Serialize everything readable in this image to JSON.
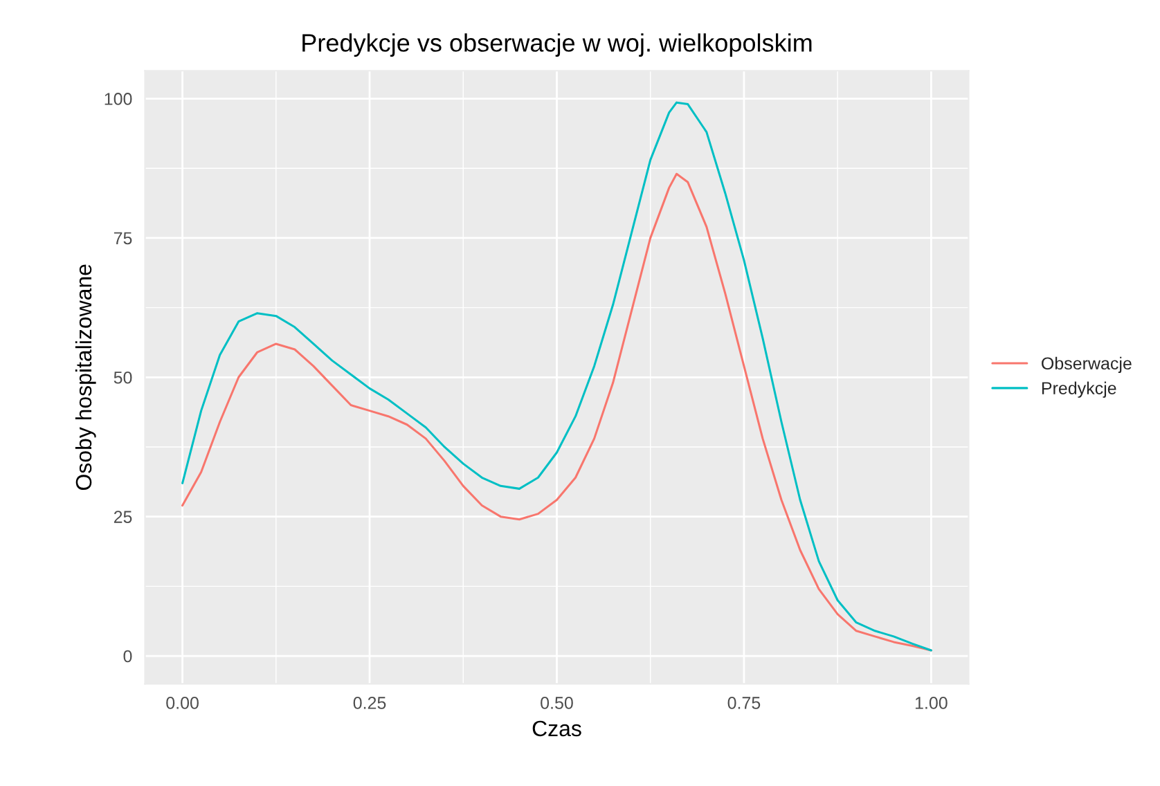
{
  "chart_data": {
    "type": "line",
    "title": "Predykcje vs obserwacje w woj. wielkopolskim",
    "xlabel": "Czas",
    "ylabel": "Osoby hospitalizowane",
    "x": [
      0,
      0.025,
      0.05,
      0.075,
      0.1,
      0.125,
      0.15,
      0.175,
      0.2,
      0.225,
      0.25,
      0.275,
      0.3,
      0.325,
      0.35,
      0.375,
      0.4,
      0.425,
      0.45,
      0.475,
      0.5,
      0.525,
      0.55,
      0.575,
      0.6,
      0.625,
      0.65,
      0.66,
      0.675,
      0.7,
      0.725,
      0.75,
      0.775,
      0.8,
      0.825,
      0.85,
      0.875,
      0.9,
      0.925,
      0.95,
      0.975,
      1.0
    ],
    "series": [
      {
        "name": "Obserwacje",
        "color": "#f8766d",
        "values": [
          27,
          33,
          42,
          50,
          54.5,
          56,
          55,
          52,
          48.5,
          45,
          44,
          43,
          41.5,
          39,
          35,
          30.5,
          27,
          25,
          24.5,
          25.5,
          28,
          32,
          39,
          49,
          62,
          75,
          84,
          86.5,
          85,
          77,
          65,
          52,
          39,
          28,
          19,
          12,
          7.5,
          4.5,
          3.5,
          2.5,
          1.8,
          1
        ]
      },
      {
        "name": "Predykcje",
        "color": "#00bfc4",
        "values": [
          31,
          44,
          54,
          60,
          61.5,
          61,
          59,
          56,
          53,
          50.5,
          48,
          46,
          43.5,
          41,
          37.5,
          34.5,
          32,
          30.5,
          30,
          32,
          36.5,
          43,
          52,
          63,
          76,
          89,
          97.5,
          99.3,
          99,
          94,
          83,
          71,
          57,
          42,
          28,
          17,
          10,
          6,
          4.5,
          3.5,
          2.2,
          1
        ]
      }
    ],
    "xlim": [
      -0.05,
      1.05
    ],
    "ylim": [
      -5,
      105
    ],
    "xticks": [
      {
        "value": 0,
        "label": "0.00"
      },
      {
        "value": 0.25,
        "label": "0.25"
      },
      {
        "value": 0.5,
        "label": "0.50"
      },
      {
        "value": 0.75,
        "label": "0.75"
      },
      {
        "value": 1.0,
        "label": "1.00"
      }
    ],
    "yticks": [
      0,
      25,
      50,
      75,
      100
    ],
    "grid": true,
    "legend": "right",
    "marker": "none",
    "line_style": "solid"
  }
}
